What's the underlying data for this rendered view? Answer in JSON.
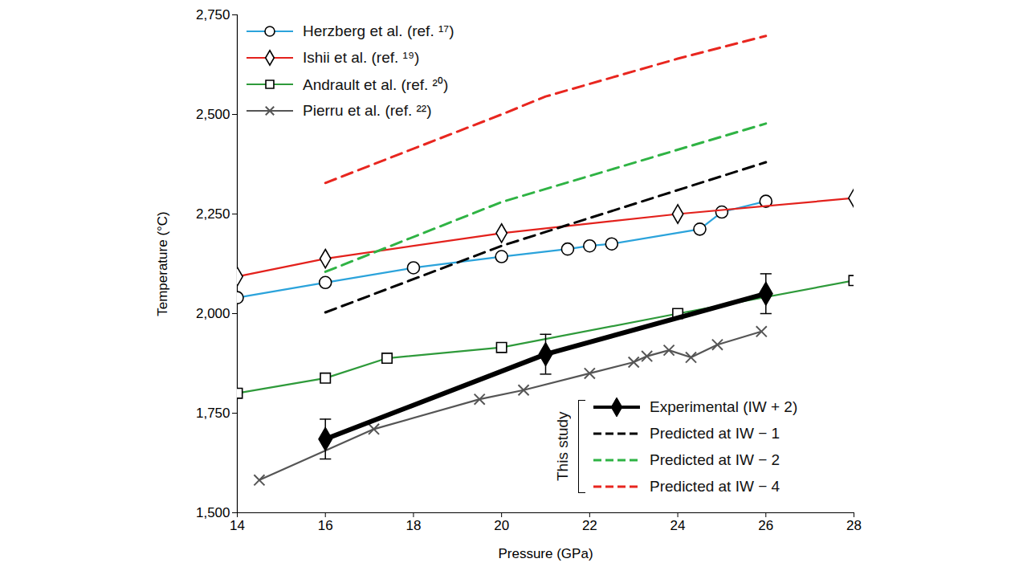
{
  "chart_data": {
    "type": "line",
    "x_label": "Pressure (GPa)",
    "y_label": "Temperature (°C)",
    "xlim": [
      14,
      28
    ],
    "xticks": [
      14,
      16,
      18,
      20,
      22,
      24,
      26,
      28
    ],
    "ylim": [
      1500,
      2750
    ],
    "yticks": [
      {
        "value": 1500,
        "label": "1,500"
      },
      {
        "value": 1750,
        "label": "1,750"
      },
      {
        "value": 2000,
        "label": "2,000"
      },
      {
        "value": 2250,
        "label": "2,250"
      },
      {
        "value": 2500,
        "label": "2,500"
      },
      {
        "value": 2750,
        "label": "2,750"
      }
    ],
    "grid": false,
    "legend": "upper left",
    "annotations": [
      {
        "text": "This study",
        "legend": "lower right"
      }
    ],
    "series": [
      {
        "name": "Herzberg et al. (ref. ¹⁷)",
        "color": "#2ba3db",
        "marker": "open-circle",
        "line_style": "solid",
        "x": [
          14,
          16,
          18,
          20,
          21.5,
          22,
          22.5,
          24.5,
          25,
          26
        ],
        "values": [
          2040,
          2078,
          2115,
          2143,
          2162,
          2170,
          2175,
          2212,
          2255,
          2282
        ]
      },
      {
        "name": "Ishii et al. (ref. ¹⁹)",
        "color": "#e3211c",
        "marker": "open-diamond",
        "line_style": "solid",
        "x": [
          14,
          16,
          20,
          24,
          28
        ],
        "values": [
          2093,
          2138,
          2202,
          2250,
          2290
        ]
      },
      {
        "name": "Andrault et al. (ref. ²⁰)",
        "color": "#2e9a3a",
        "marker": "open-square",
        "line_style": "solid",
        "x": [
          14,
          16,
          17.4,
          20,
          24,
          28
        ],
        "values": [
          1800,
          1838,
          1888,
          1915,
          2000,
          2083
        ]
      },
      {
        "name": "Pierru et al. (ref. ²²)",
        "color": "#555555",
        "marker": "times",
        "line_style": "solid",
        "x": [
          14.5,
          17.1,
          19.5,
          20.5,
          22,
          23,
          23.3,
          23.8,
          24.3,
          24.9,
          25.9
        ],
        "values": [
          1582,
          1710,
          1785,
          1808,
          1850,
          1878,
          1893,
          1908,
          1890,
          1922,
          1955
        ]
      },
      {
        "name": "Predicted at IW − 1",
        "color": "#000000",
        "marker": "none",
        "line_style": "dashed",
        "legend": "lower right",
        "x": [
          16,
          20,
          26
        ],
        "values": [
          2003,
          2170,
          2380
        ]
      },
      {
        "name": "Predicted at IW − 2",
        "color": "#2fb344",
        "marker": "none",
        "line_style": "dashed",
        "legend": "lower right",
        "x": [
          16,
          20,
          26
        ],
        "values": [
          2105,
          2280,
          2477
        ]
      },
      {
        "name": "Predicted at IW − 4",
        "color": "#e8261f",
        "marker": "none",
        "line_style": "dashed",
        "legend": "lower right",
        "x": [
          16,
          20,
          21,
          24,
          26
        ],
        "values": [
          2328,
          2500,
          2545,
          2640,
          2697
        ]
      },
      {
        "name": "Experimental (IW + 2)",
        "color": "#000000",
        "marker": "filled-diamond",
        "line_style": "heavy",
        "legend": "lower right",
        "x": [
          16,
          21,
          26
        ],
        "values": [
          1685,
          1898,
          2050
        ],
        "errors": [
          50,
          50,
          50
        ]
      }
    ]
  }
}
